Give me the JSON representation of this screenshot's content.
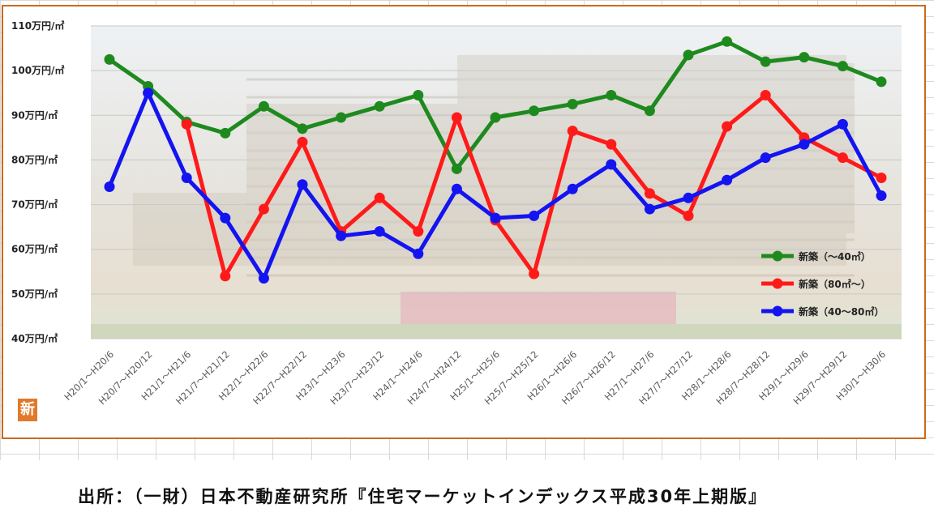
{
  "chart_data": {
    "type": "line",
    "title": "",
    "xlabel": "",
    "ylabel": "",
    "ylim": [
      40,
      110
    ],
    "yticks": [
      "40万円/㎡",
      "50万円/㎡",
      "60万円/㎡",
      "70万円/㎡",
      "80万円/㎡",
      "90万円/㎡",
      "100万円/㎡",
      "110万円/㎡"
    ],
    "grid": true,
    "legend_position": "right",
    "categories": [
      "H20/1〜H20/6",
      "H20/7〜H20/12",
      "H21/1〜H21/6",
      "H21/7〜H21/12",
      "H22/1〜H22/6",
      "H22/7〜H22/12",
      "H23/1〜H23/6",
      "H23/7〜H23/12",
      "H24/1〜H24/6",
      "H24/7〜H24/12",
      "H25/1〜H25/6",
      "H25/7〜H25/12",
      "H26/1〜H26/6",
      "H26/7〜H26/12",
      "H27/1〜H27/6",
      "H27/7〜H27/12",
      "H28/1〜H28/6",
      "H28/7〜H28/12",
      "H29/1〜H29/6",
      "H29/7〜H29/12",
      "H30/1〜H30/6"
    ],
    "series": [
      {
        "name": "新築（〜40㎡）",
        "color": "#1e8a1e",
        "values": [
          102.5,
          96.5,
          88.5,
          86,
          92,
          87,
          89.5,
          92,
          94.5,
          78,
          89.5,
          91,
          92.5,
          94.5,
          91,
          103.5,
          106.5,
          102,
          103,
          101,
          97.5
        ]
      },
      {
        "name": "新築（80㎡〜）",
        "color": "#ff1a1a",
        "values": [
          null,
          null,
          88,
          54,
          69,
          84,
          64,
          71.5,
          64,
          89.5,
          66.5,
          54.5,
          86.5,
          83.5,
          72.5,
          67.5,
          87.5,
          94.5,
          85,
          80.5,
          76
        ]
      },
      {
        "name": "新築（40〜80㎡）",
        "color": "#1414f0",
        "values": [
          74,
          95,
          76,
          67,
          53.5,
          74.5,
          63,
          64,
          59,
          73.5,
          67,
          67.5,
          73.5,
          79,
          69,
          71.5,
          75.5,
          80.5,
          83.5,
          88,
          72
        ]
      }
    ]
  },
  "logo_icon": "shin-logo-icon",
  "logo_glyph": "新",
  "source": "出所：（一財）日本不動産研究所『住宅マーケットインデックス平成30年上期版』"
}
